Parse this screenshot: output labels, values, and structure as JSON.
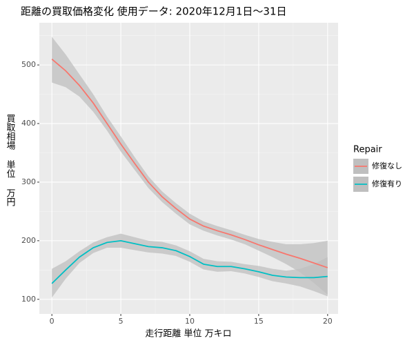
{
  "chart_data": {
    "type": "line",
    "title": "距離の買取価格変化 使用データ: 2020年12月1日～31日",
    "x_label": "走行距離 単位 万キロ",
    "y_label": "買取相場 単位 万円",
    "legend_title": "Repair",
    "x": [
      0,
      1,
      2,
      3,
      4,
      5,
      6,
      7,
      8,
      9,
      10,
      11,
      12,
      13,
      14,
      15,
      16,
      17,
      18,
      19,
      20
    ],
    "series": [
      {
        "name": "修復なし",
        "color": "#f8766d",
        "values": [
          510,
          490,
          465,
          435,
          400,
          365,
          332,
          300,
          275,
          255,
          237,
          225,
          217,
          210,
          202,
          193,
          185,
          177,
          170,
          162,
          154
        ],
        "lower": [
          470,
          462,
          446,
          420,
          388,
          352,
          321,
          290,
          266,
          246,
          228,
          217,
          209,
          202,
          194,
          183,
          172,
          160,
          146,
          128,
          108
        ],
        "upper": [
          548,
          518,
          484,
          450,
          412,
          378,
          343,
          310,
          284,
          264,
          246,
          233,
          225,
          218,
          210,
          203,
          198,
          194,
          194,
          196,
          200
        ]
      },
      {
        "name": "修復有り",
        "color": "#00bfc4",
        "values": [
          127,
          150,
          172,
          188,
          197,
          200,
          195,
          190,
          188,
          183,
          173,
          160,
          156,
          156,
          152,
          147,
          141,
          138,
          137,
          137,
          139
        ],
        "lower": [
          103,
          135,
          162,
          179,
          188,
          188,
          184,
          180,
          178,
          174,
          164,
          151,
          147,
          148,
          144,
          138,
          131,
          127,
          122,
          114,
          105
        ],
        "upper": [
          152,
          165,
          182,
          197,
          206,
          212,
          206,
          200,
          198,
          192,
          182,
          169,
          165,
          164,
          160,
          157,
          152,
          149,
          152,
          160,
          172
        ]
      }
    ],
    "xlim": [
      -0.91,
      20.76
    ],
    "xticks": [
      0,
      5,
      10,
      15,
      20
    ],
    "xminor": [
      2.5,
      7.5,
      12.5,
      17.5
    ],
    "ylim": [
      75,
      572
    ],
    "yticks": [
      100,
      200,
      300,
      400,
      500
    ],
    "yminor": [
      150,
      250,
      350,
      450,
      550
    ],
    "band_color": "#bfbfbf",
    "grid": true
  }
}
